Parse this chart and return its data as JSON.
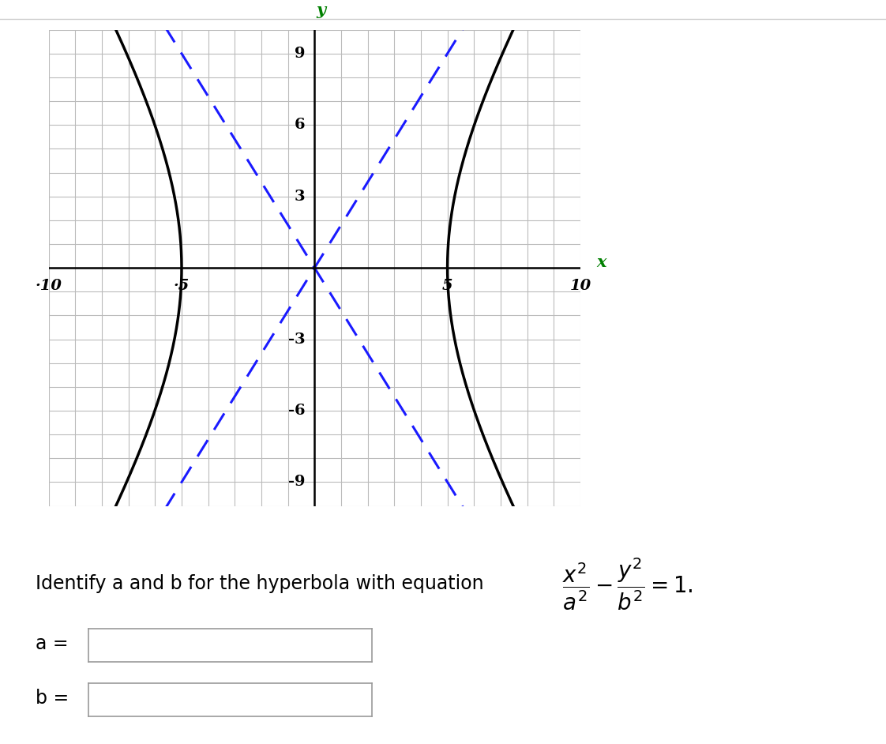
{
  "xlim": [
    -10,
    10
  ],
  "ylim": [
    -10,
    10
  ],
  "a": 5,
  "b": 9,
  "x_ticks_labeled": [
    -10,
    -5,
    5,
    10
  ],
  "y_ticks_labeled": [
    -9,
    -6,
    -3,
    3,
    6,
    9
  ],
  "grid_color": "#bbbbbb",
  "hyperbola_color": "#000000",
  "asymptote_color": "#1a1aff",
  "axis_color": "#000000",
  "xlabel": "x",
  "ylabel": "y",
  "label_color": "#008000",
  "hyperbola_lw": 2.5,
  "asymptote_lw": 2.2,
  "axis_lw": 1.8,
  "bg_color": "#ffffff",
  "tick_fontsize": 14,
  "axis_label_fontsize": 15,
  "instruction_fontsize": 17,
  "eq_fontsize": 20
}
